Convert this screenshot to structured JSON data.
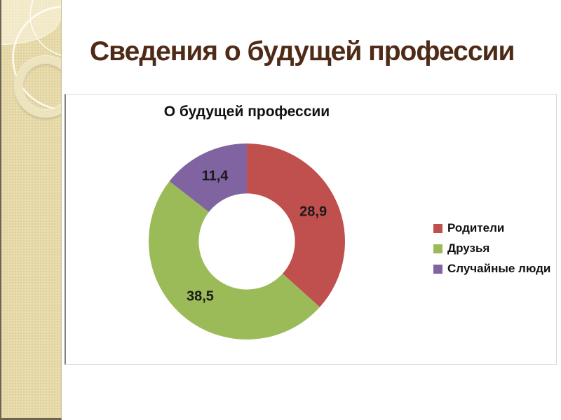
{
  "slide": {
    "title": "Сведения о будущей профессии"
  },
  "theme": {
    "title_color": "#4F2B17",
    "sidebar_color": "#E7D9A5",
    "chart_border_color": "#D9D9D9"
  },
  "chart_data": {
    "type": "pie",
    "subtype": "donut",
    "title": "О будущей профессии",
    "categories": [
      "Родители",
      "Друзья",
      "Случайные люди"
    ],
    "values": [
      28.9,
      38.5,
      11.4
    ],
    "value_labels": [
      "28,9",
      "38,5",
      "11,4"
    ],
    "colors": [
      "#C0504D",
      "#9BBB59",
      "#8064A2"
    ],
    "inner_radius_ratio": 0.49,
    "start_angle_deg": 0,
    "direction": "clockwise",
    "legend_position": "right",
    "labels_shown": "values_with_decimal_comma"
  }
}
